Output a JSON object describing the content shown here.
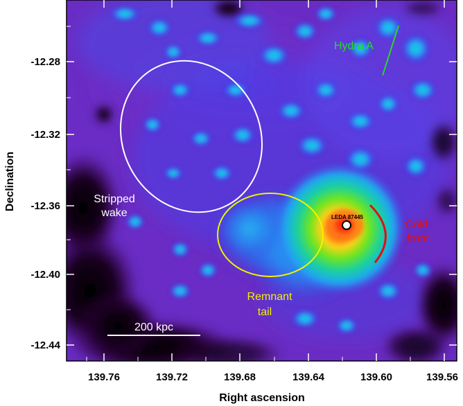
{
  "image": {
    "x_axis_label": "Right ascension",
    "y_axis_label": "Declination",
    "x_ticks": [
      "139.76",
      "139.72",
      "139.68",
      "139.64",
      "139.60",
      "139.56"
    ],
    "y_ticks": [
      "-12.28",
      "-12.32",
      "-12.36",
      "-12.40",
      "-12.44"
    ],
    "annotations": {
      "hydra": "Hydra A",
      "stripped_line1": "Stripped",
      "stripped_line2": "wake",
      "leda": "LEDA 87445",
      "cold_line1": "Cold",
      "cold_line2": "front",
      "remnant_line1": "Remnant",
      "remnant_line2": "tail",
      "scale": "200 kpc"
    },
    "colors": {
      "hydra": "#22dd22",
      "white": "#ffffff",
      "yellow": "#f2f200",
      "red": "#e01010"
    }
  }
}
